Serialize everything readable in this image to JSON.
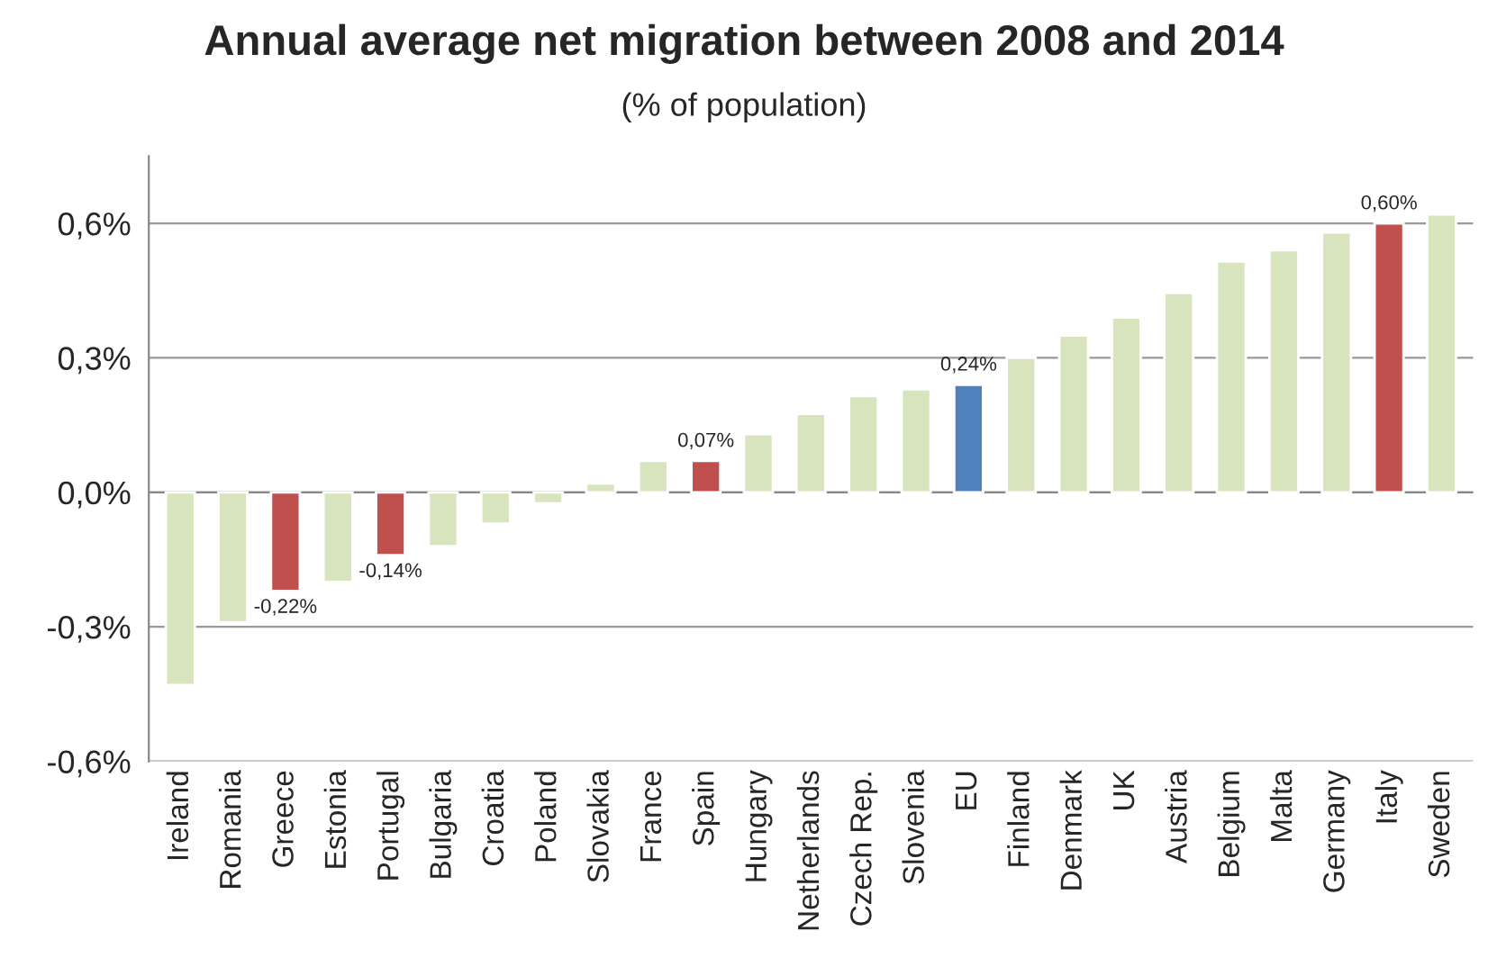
{
  "chart_data": {
    "type": "bar",
    "title": "Annual average net migration between 2008 and 2014",
    "subtitle": "(% of population)",
    "categories": [
      "Ireland",
      "Romania",
      "Greece",
      "Estonia",
      "Portugal",
      "Bulgaria",
      "Croatia",
      "Poland",
      "Slovakia",
      "France",
      "Spain",
      "Hungary",
      "Netherlands",
      "Czech Rep.",
      "Slovenia",
      "EU",
      "Finland",
      "Denmark",
      "UK",
      "Austria",
      "Belgium",
      "Malta",
      "Germany",
      "Italy",
      "Sweden"
    ],
    "values": [
      -0.43,
      -0.29,
      -0.22,
      -0.2,
      -0.14,
      -0.12,
      -0.07,
      -0.025,
      0.02,
      0.07,
      0.07,
      0.13,
      0.175,
      0.215,
      0.23,
      0.24,
      0.3,
      0.35,
      0.39,
      0.445,
      0.515,
      0.54,
      0.58,
      0.6,
      0.62
    ],
    "colors": [
      "#d7e4bd",
      "#d7e4bd",
      "#c0504d",
      "#d7e4bd",
      "#c0504d",
      "#d7e4bd",
      "#d7e4bd",
      "#d7e4bd",
      "#d7e4bd",
      "#d7e4bd",
      "#c0504d",
      "#d7e4bd",
      "#d7e4bd",
      "#d7e4bd",
      "#d7e4bd",
      "#4f81bd",
      "#d7e4bd",
      "#d7e4bd",
      "#d7e4bd",
      "#d7e4bd",
      "#d7e4bd",
      "#d7e4bd",
      "#d7e4bd",
      "#c0504d",
      "#d7e4bd"
    ],
    "value_labels": [
      null,
      null,
      "-0,22%",
      null,
      "-0,14%",
      null,
      null,
      null,
      null,
      null,
      "0,07%",
      null,
      null,
      null,
      null,
      "0,24%",
      null,
      null,
      null,
      null,
      null,
      null,
      null,
      "0,60%",
      null
    ],
    "ylim": [
      -0.6,
      0.75
    ],
    "yticks": [
      {
        "value": -0.6,
        "label": "-0,6%"
      },
      {
        "value": -0.3,
        "label": "-0,3%"
      },
      {
        "value": 0,
        "label": "0,0%"
      },
      {
        "value": 0.3,
        "label": "0,3%"
      },
      {
        "value": 0.6,
        "label": "0,6%"
      }
    ],
    "grid": "y"
  }
}
